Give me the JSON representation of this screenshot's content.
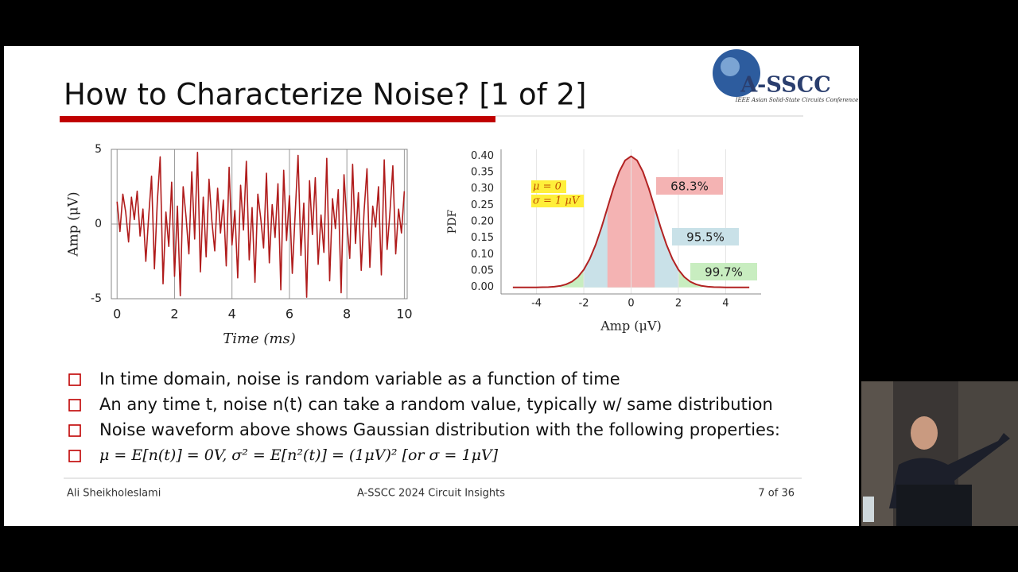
{
  "slide": {
    "title": "How to Characterize Noise? [1 of 2]",
    "logo": "A-SSCC",
    "logo_caption": "IEEE Asian Solid-State Circuits Conference",
    "bullets": [
      "In time domain, noise is random variable as a function of time",
      "An any time t, noise n(t) can take a random value, typically w/ same distribution",
      "Noise waveform above shows Gaussian distribution with the following properties:",
      "μ = E[n(t)] = 0V,   σ² = E[n²(t)] = (1μV)²  [or σ = 1μV]"
    ],
    "footer": {
      "author": "Ali Sheikholeslami",
      "event": "A-SSCC 2024 Circuit Insights",
      "page": "7 of 36"
    }
  },
  "chart_data": [
    {
      "type": "line",
      "x": [
        0,
        0.1,
        0.2,
        0.3,
        0.4,
        0.5,
        0.6,
        0.7,
        0.8,
        0.9,
        1,
        1.1,
        1.2,
        1.3,
        1.4,
        1.5,
        1.6,
        1.7,
        1.8,
        1.9,
        2,
        2.1,
        2.2,
        2.3,
        2.4,
        2.5,
        2.6,
        2.7,
        2.8,
        2.9,
        3,
        3.1,
        3.2,
        3.3,
        3.4,
        3.5,
        3.6,
        3.7,
        3.8,
        3.9,
        4,
        4.1,
        4.2,
        4.3,
        4.4,
        4.5,
        4.6,
        4.7,
        4.8,
        4.9,
        5,
        5.1,
        5.2,
        5.3,
        5.4,
        5.5,
        5.6,
        5.7,
        5.8,
        5.9,
        6,
        6.1,
        6.2,
        6.3,
        6.4,
        6.5,
        6.6,
        6.7,
        6.8,
        6.9,
        7,
        7.1,
        7.2,
        7.3,
        7.4,
        7.5,
        7.6,
        7.7,
        7.8,
        7.9,
        8,
        8.1,
        8.2,
        8.3,
        8.4,
        8.5,
        8.6,
        8.7,
        8.8,
        8.9,
        9,
        9.1,
        9.2,
        9.3,
        9.4,
        9.5,
        9.6,
        9.7,
        9.8,
        9.9,
        10
      ],
      "values": [
        1.5,
        -0.5,
        2.0,
        0.8,
        -1.2,
        1.8,
        0.3,
        2.2,
        -0.8,
        1.0,
        -2.5,
        0.5,
        3.2,
        -3.0,
        1.5,
        4.5,
        -4.0,
        0.8,
        -1.5,
        2.8,
        -3.5,
        1.2,
        -4.8,
        2.5,
        0.5,
        -2.0,
        3.5,
        -1.0,
        4.8,
        -3.2,
        1.8,
        -2.2,
        3.0,
        0.2,
        -1.8,
        2.4,
        -0.6,
        1.6,
        -2.8,
        3.8,
        -1.4,
        0.9,
        -3.6,
        2.6,
        -0.4,
        4.2,
        -2.4,
        1.1,
        -3.9,
        2.0,
        0.4,
        -1.6,
        3.4,
        -2.6,
        1.3,
        -0.9,
        2.7,
        -4.4,
        3.6,
        -1.1,
        1.9,
        -3.3,
        0.7,
        4.6,
        -2.1,
        1.4,
        -4.9,
        2.9,
        -0.7,
        3.1,
        -2.7,
        0.6,
        -1.9,
        4.4,
        -3.8,
        1.7,
        -0.3,
        2.3,
        -4.6,
        3.3,
        0.1,
        -2.3,
        4.0,
        -1.3,
        2.1,
        -3.1,
        0.9,
        3.7,
        -2.9,
        1.2,
        -0.2,
        2.5,
        -3.4,
        4.3,
        -1.7,
        0.8,
        3.9,
        -2.0,
        1.0,
        -0.6,
        2.2
      ],
      "color": "#b01c1c",
      "xlim": [
        -0.2,
        10.1
      ],
      "xticks": [
        0,
        2,
        4,
        6,
        8,
        10
      ],
      "ylim": [
        -5,
        5
      ],
      "yticks": [
        -5,
        0,
        5
      ],
      "xlabel": "Time (ms)",
      "ylabel": "Amp (μV)",
      "grid": true
    },
    {
      "type": "line",
      "x": [
        -5,
        -4.75,
        -4.5,
        -4.25,
        -4,
        -3.75,
        -3.5,
        -3.25,
        -3,
        -2.75,
        -2.5,
        -2.25,
        -2,
        -1.75,
        -1.5,
        -1.25,
        -1,
        -0.75,
        -0.5,
        -0.25,
        0,
        0.25,
        0.5,
        0.75,
        1,
        1.25,
        1.5,
        1.75,
        2,
        2.25,
        2.5,
        2.75,
        3,
        3.25,
        3.5,
        3.75,
        4,
        4.25,
        4.5,
        4.75,
        5
      ],
      "values": [
        0,
        0,
        0,
        0,
        0.0001,
        0.0004,
        0.0009,
        0.002,
        0.0044,
        0.0091,
        0.0175,
        0.0317,
        0.054,
        0.0863,
        0.1295,
        0.1826,
        0.242,
        0.3011,
        0.3521,
        0.3867,
        0.3989,
        0.3867,
        0.3521,
        0.3011,
        0.242,
        0.1826,
        0.1295,
        0.0863,
        0.054,
        0.0317,
        0.0175,
        0.0091,
        0.0044,
        0.002,
        0.0009,
        0.0004,
        0.0001,
        0,
        0,
        0,
        0
      ],
      "color": "#b22222",
      "xlim": [
        -5.5,
        5.5
      ],
      "xticks": [
        -4,
        -2,
        0,
        2,
        4
      ],
      "ylim": [
        -0.02,
        0.42
      ],
      "yticks": [
        {
          "value": 0,
          "label": "0.00"
        },
        0.05,
        {
          "value": 0.1,
          "label": "0.10"
        },
        0.15,
        {
          "value": 0.2,
          "label": "0.20"
        },
        0.25,
        {
          "value": 0.3,
          "label": "0.30"
        },
        0.35,
        {
          "value": 0.4,
          "label": "0.40"
        }
      ],
      "xlabel": "Amp (μV)",
      "ylabel": "PDF",
      "grid": "x",
      "annotations": [
        "μ = 0",
        "σ = 1 μV"
      ],
      "bands": [
        {
          "value": 99.7,
          "label": "99.7%",
          "from": -3,
          "to": 3,
          "color": "#c8edc0"
        },
        {
          "value": 95.5,
          "label": "95.5%",
          "from": -2,
          "to": 2,
          "color": "#c9e1e8"
        },
        {
          "value": 68.3,
          "label": "68.3%",
          "from": -1,
          "to": 1,
          "color": "#f4b3b3"
        }
      ]
    }
  ]
}
